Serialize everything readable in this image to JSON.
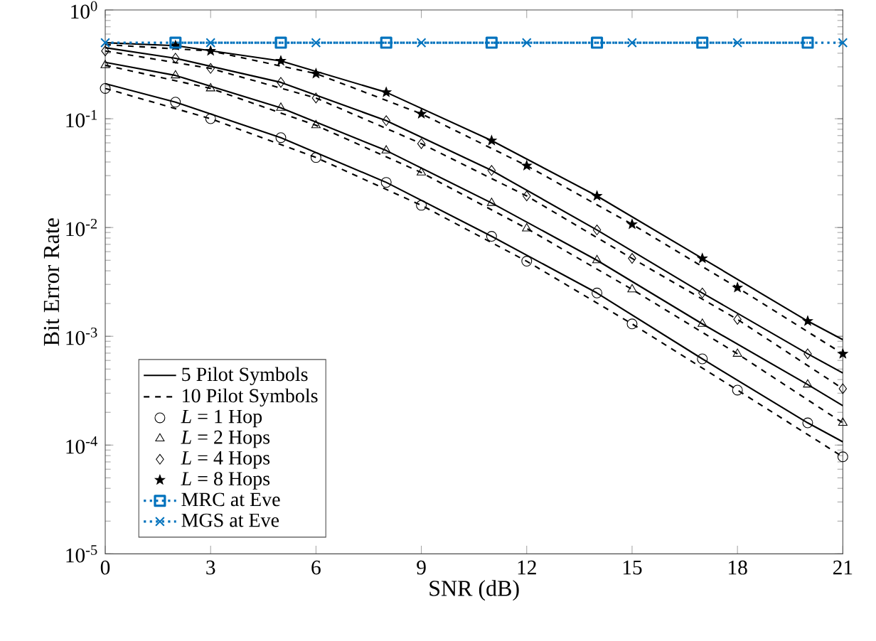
{
  "chart_data": {
    "type": "line",
    "xlabel": "SNR (dB)",
    "ylabel": "Bit Error Rate",
    "log": "y",
    "grid": false,
    "legend": "bottom left",
    "xlim": [
      0,
      21
    ],
    "xticks": [
      0,
      3,
      6,
      9,
      12,
      15,
      18,
      21
    ],
    "ylim": [
      1e-05,
      1
    ],
    "yticks": [
      {
        "value": 1e-05,
        "label": "10$^{-5}$"
      },
      {
        "value": 0.0001,
        "label": "10$^{-4}$"
      },
      {
        "value": 0.001,
        "label": "10$^{-3}$"
      },
      {
        "value": 0.01,
        "label": "10$^{-2}$"
      },
      {
        "value": 0.1,
        "label": "10$^{-1}$"
      },
      {
        "value": 1,
        "label": "10$^{0}$"
      }
    ],
    "series": [
      {
        "name": "5 Pilot Symbols",
        "color": "#000000",
        "line_style": "solid",
        "marker": "none",
        "x": [
          0,
          2,
          5,
          8,
          11,
          14,
          17,
          20,
          21
        ],
        "values": [
          0.21,
          0.142,
          0.067,
          0.026,
          0.0083,
          0.0025,
          0.00062,
          0.00016,
          0.000107
        ]
      },
      {
        "name": "10 Pilot Symbols",
        "color": "#000000",
        "line_style": "dashed",
        "marker": "none",
        "x": [
          0,
          3,
          6,
          9,
          12,
          15,
          18,
          21
        ],
        "values": [
          0.19,
          0.1,
          0.044,
          0.016,
          0.0049,
          0.0013,
          0.00032,
          7.8e-05
        ]
      },
      {
        "color": "#000000",
        "line_style": "solid",
        "marker": "none",
        "x": [
          0,
          2,
          5,
          8,
          11,
          14,
          17,
          20,
          21
        ],
        "values": [
          0.33,
          0.25,
          0.126,
          0.051,
          0.0168,
          0.005,
          0.0013,
          0.00036,
          0.00023
        ]
      },
      {
        "color": "#000000",
        "line_style": "dashed",
        "marker": "none",
        "x": [
          0,
          3,
          6,
          9,
          12,
          15,
          18,
          21
        ],
        "values": [
          0.31,
          0.19,
          0.087,
          0.032,
          0.0098,
          0.0027,
          0.00069,
          0.00016
        ]
      },
      {
        "color": "#000000",
        "line_style": "solid",
        "marker": "none",
        "x": [
          0,
          2,
          5,
          8,
          11,
          14,
          17,
          20,
          21
        ],
        "values": [
          0.45,
          0.36,
          0.216,
          0.096,
          0.0335,
          0.0095,
          0.0025,
          0.00069,
          0.00046
        ]
      },
      {
        "color": "#000000",
        "line_style": "dashed",
        "marker": "none",
        "x": [
          0,
          3,
          6,
          9,
          12,
          15,
          18,
          21
        ],
        "values": [
          0.42,
          0.29,
          0.155,
          0.059,
          0.0195,
          0.0052,
          0.00143,
          0.00033
        ]
      },
      {
        "color": "#000000",
        "line_style": "solid",
        "marker": "none",
        "x": [
          0,
          2,
          5,
          8,
          11,
          14,
          17,
          20,
          21
        ],
        "values": [
          0.5,
          0.47,
          0.34,
          0.175,
          0.063,
          0.0195,
          0.0052,
          0.00138,
          0.00093
        ]
      },
      {
        "color": "#000000",
        "line_style": "dashed",
        "marker": "none",
        "x": [
          0,
          3,
          6,
          9,
          12,
          15,
          18,
          21
        ],
        "values": [
          0.48,
          0.42,
          0.26,
          0.111,
          0.037,
          0.0107,
          0.0028,
          0.00069
        ]
      },
      {
        "type": "scatter",
        "name": "*L* = 1 Hop",
        "color": "#000000",
        "marker": "circle",
        "x": [
          0,
          2,
          3,
          5,
          6,
          8,
          9,
          11,
          12,
          14,
          15,
          17,
          18,
          20,
          21
        ],
        "values": [
          0.19,
          0.142,
          0.1,
          0.067,
          0.044,
          0.026,
          0.016,
          0.0083,
          0.0049,
          0.0025,
          0.0013,
          0.00062,
          0.00032,
          0.00016,
          7.8e-05
        ]
      },
      {
        "type": "scatter",
        "name": "*L* = 2 Hops",
        "color": "#000000",
        "marker": "triangle",
        "x": [
          0,
          2,
          3,
          5,
          6,
          8,
          9,
          11,
          12,
          14,
          15,
          17,
          18,
          20,
          21
        ],
        "values": [
          0.31,
          0.25,
          0.19,
          0.126,
          0.087,
          0.051,
          0.032,
          0.0168,
          0.0098,
          0.005,
          0.0027,
          0.0013,
          0.00069,
          0.00036,
          0.00016
        ]
      },
      {
        "type": "scatter",
        "name": "*L* = 4 Hops",
        "color": "#000000",
        "marker": "diamond",
        "x": [
          0,
          2,
          3,
          5,
          6,
          8,
          9,
          11,
          12,
          14,
          15,
          17,
          18,
          20,
          21
        ],
        "values": [
          0.42,
          0.36,
          0.29,
          0.216,
          0.155,
          0.096,
          0.059,
          0.0335,
          0.0195,
          0.0095,
          0.0052,
          0.0025,
          0.00143,
          0.00069,
          0.00033
        ]
      },
      {
        "type": "scatter",
        "name": "*L* = 8 Hops",
        "color": "#000000",
        "marker": "star",
        "x": [
          2,
          3,
          5,
          6,
          8,
          9,
          11,
          12,
          14,
          15,
          17,
          18,
          20,
          21
        ],
        "values": [
          0.47,
          0.42,
          0.34,
          0.26,
          0.175,
          0.111,
          0.063,
          0.037,
          0.0195,
          0.0107,
          0.0052,
          0.0028,
          0.00138,
          0.00069
        ]
      },
      {
        "name": "MRC at Eve",
        "color": "#0072bd",
        "line_style": "dotted",
        "marker": "square",
        "x": [
          2,
          5,
          8,
          11,
          14,
          17,
          20
        ],
        "values": [
          0.5,
          0.5,
          0.5,
          0.5,
          0.5,
          0.5,
          0.5
        ]
      },
      {
        "name": "MGS at Eve",
        "color": "#0072bd",
        "line_style": "dotted",
        "marker": "cross",
        "x": [
          0,
          3,
          6,
          9,
          12,
          15,
          18,
          21
        ],
        "values": [
          0.5,
          0.5,
          0.5,
          0.5,
          0.5,
          0.5,
          0.5,
          0.5
        ]
      }
    ]
  }
}
